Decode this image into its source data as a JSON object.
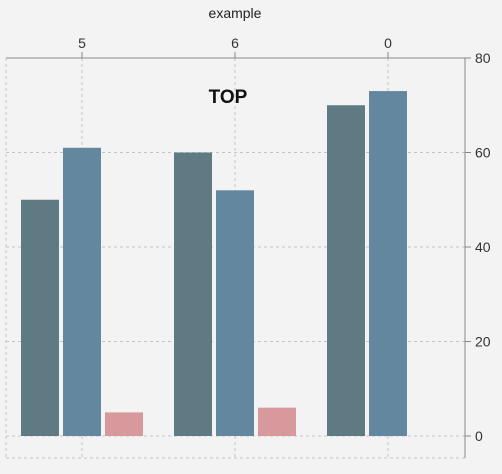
{
  "chart_data": {
    "type": "bar",
    "caption": "example",
    "title": "TOP",
    "categories": [
      "5",
      "6",
      "0"
    ],
    "series": [
      {
        "values": [
          50,
          60,
          70
        ],
        "color": "#607a84"
      },
      {
        "values": [
          61,
          52,
          73
        ],
        "color": "#62879e"
      },
      {
        "values": [
          5,
          6,
          null
        ],
        "color": "#d8999c"
      }
    ],
    "x_axis_position": "top",
    "y_axis_position": "right",
    "ylim": [
      0,
      80
    ],
    "yticks": [
      "0",
      "20",
      "40",
      "60",
      "80"
    ],
    "grid": true,
    "background": "#f3f3f3",
    "grid_color": "#c4c4c4",
    "axis_color": "#888888"
  }
}
